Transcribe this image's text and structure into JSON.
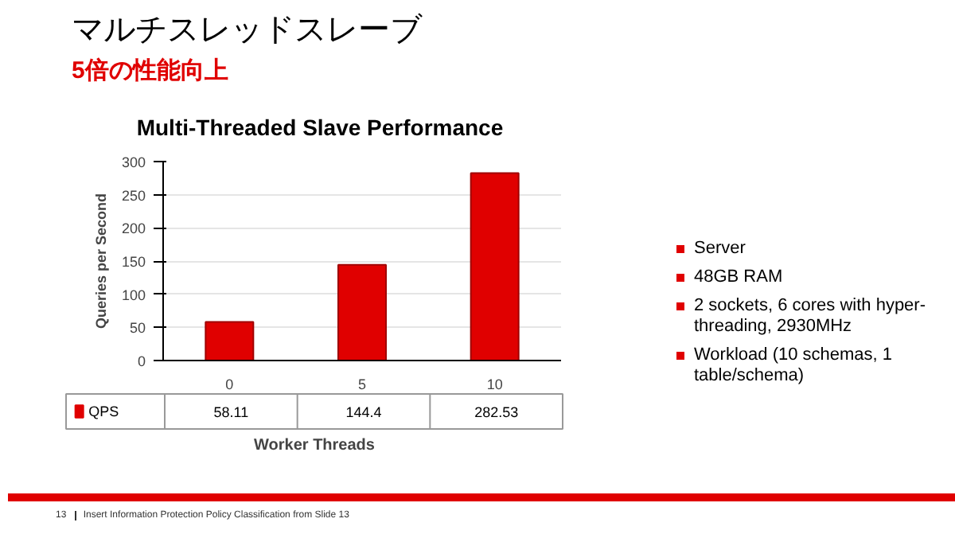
{
  "chart_data": {
    "type": "bar",
    "title": "マルチスレッドスレーブ",
    "subtitle": "5倍の性能向上",
    "xlabel": "Worker Threads",
    "ylabel": "Queries per Second",
    "categories": [
      "0",
      "5",
      "10"
    ],
    "series": [
      {
        "name": "QPS",
        "color": "#e00000",
        "values": [
          58.11,
          144.4,
          282.53
        ]
      }
    ],
    "ylim": [
      0,
      300
    ],
    "yticks": [
      0,
      50,
      100,
      150,
      200,
      250,
      300
    ],
    "grid": "y",
    "legend": "bottom",
    "value_labels": [
      "58.11",
      "144.4",
      "282.53"
    ],
    "annotations": [
      "Multi-Threaded Slave Performance",
      "Server",
      "48GB RAM",
      "2 sockets, 6 cores with hyper-threading, 2930MHz",
      "Workload (10 schemas, 1 table/schema)",
      "13",
      "Insert Information Protection Policy Classification from Slide 13"
    ]
  }
}
